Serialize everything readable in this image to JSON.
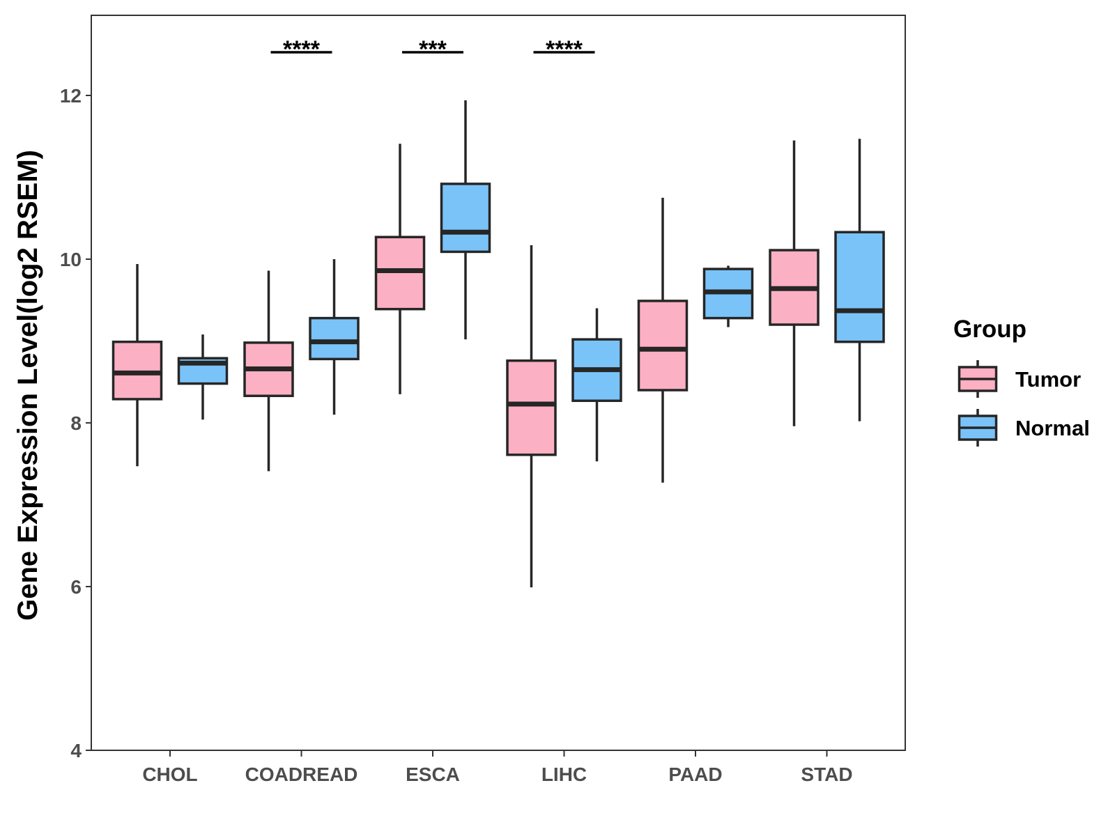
{
  "chart_data": {
    "type": "boxplot",
    "title": "",
    "xlabel": "",
    "ylabel": "Gene Expression Level(log2 RSEM)",
    "ylim": [
      4,
      13
    ],
    "yticks": [
      4,
      6,
      8,
      10,
      12
    ],
    "grid": false,
    "legend_position": "right",
    "legend_title": "Group",
    "categories": [
      "CHOL",
      "COADREAD",
      "ESCA",
      "LIHC",
      "PAAD",
      "STAD"
    ],
    "series": [
      {
        "name": "Tumor",
        "color": "#FCB0C3",
        "boxes": [
          {
            "category": "CHOL",
            "whisker_low": 7.47,
            "q1": 8.29,
            "median": 8.61,
            "q3": 8.99,
            "whisker_high": 9.94
          },
          {
            "category": "COADREAD",
            "whisker_low": 7.41,
            "q1": 8.33,
            "median": 8.66,
            "q3": 8.98,
            "whisker_high": 9.86
          },
          {
            "category": "ESCA",
            "whisker_low": 8.35,
            "q1": 9.39,
            "median": 9.86,
            "q3": 10.27,
            "whisker_high": 11.41
          },
          {
            "category": "LIHC",
            "whisker_low": 5.99,
            "q1": 7.61,
            "median": 8.23,
            "q3": 8.76,
            "whisker_high": 10.17
          },
          {
            "category": "PAAD",
            "whisker_low": 7.27,
            "q1": 8.4,
            "median": 8.9,
            "q3": 9.49,
            "whisker_high": 10.75
          },
          {
            "category": "STAD",
            "whisker_low": 7.96,
            "q1": 9.2,
            "median": 9.64,
            "q3": 10.11,
            "whisker_high": 11.45
          }
        ]
      },
      {
        "name": "Normal",
        "color": "#7AC3F8",
        "boxes": [
          {
            "category": "CHOL",
            "whisker_low": 8.04,
            "q1": 8.48,
            "median": 8.73,
            "q3": 8.79,
            "whisker_high": 9.08
          },
          {
            "category": "COADREAD",
            "whisker_low": 8.1,
            "q1": 8.78,
            "median": 8.99,
            "q3": 9.28,
            "whisker_high": 10.0
          },
          {
            "category": "ESCA",
            "whisker_low": 9.02,
            "q1": 10.09,
            "median": 10.33,
            "q3": 10.92,
            "whisker_high": 11.94
          },
          {
            "category": "LIHC",
            "whisker_low": 7.53,
            "q1": 8.27,
            "median": 8.65,
            "q3": 9.02,
            "whisker_high": 9.4
          },
          {
            "category": "PAAD",
            "whisker_low": 9.17,
            "q1": 9.28,
            "median": 9.6,
            "q3": 9.88,
            "whisker_high": 9.92
          },
          {
            "category": "STAD",
            "whisker_low": 8.02,
            "q1": 8.99,
            "median": 9.37,
            "q3": 10.33,
            "whisker_high": 11.47
          }
        ]
      }
    ],
    "annotations": [
      {
        "category": "COADREAD",
        "text": "****"
      },
      {
        "category": "ESCA",
        "text": "***"
      },
      {
        "category": "LIHC",
        "text": "****"
      }
    ]
  }
}
